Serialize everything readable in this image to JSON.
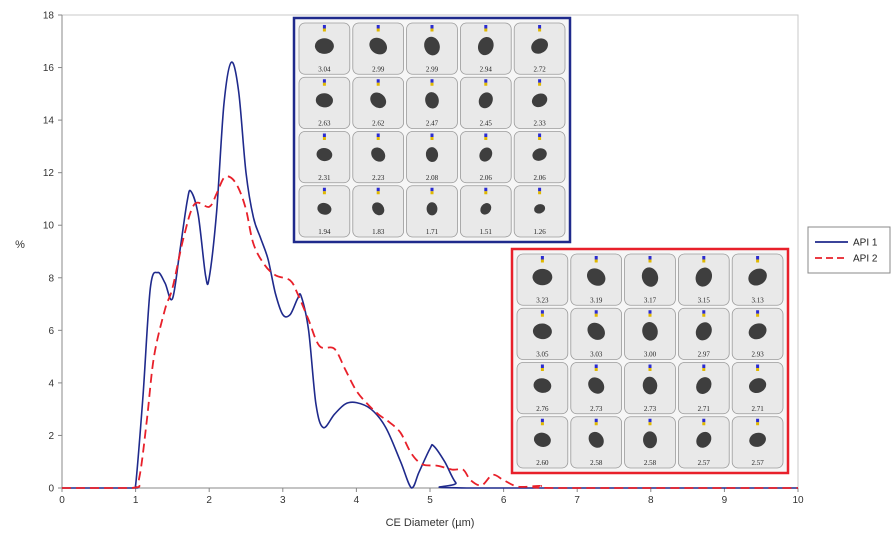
{
  "chart_data": {
    "type": "line",
    "xlabel": "CE Diameter (µm)",
    "ylabel": "%",
    "xlim": [
      0,
      10
    ],
    "ylim": [
      0,
      18
    ],
    "xticks": [
      0,
      1,
      2,
      3,
      4,
      5,
      6,
      7,
      8,
      9,
      10
    ],
    "yticks": [
      0,
      2,
      4,
      6,
      8,
      10,
      12,
      14,
      16,
      18
    ],
    "legend_position": "right",
    "series": [
      {
        "name": "API 1",
        "color": "#1f2a8c",
        "dash": "solid",
        "points": [
          [
            0,
            0
          ],
          [
            0.95,
            0
          ],
          [
            1.0,
            0.1
          ],
          [
            1.1,
            3.5
          ],
          [
            1.2,
            7.6
          ],
          [
            1.3,
            8.2
          ],
          [
            1.4,
            7.8
          ],
          [
            1.5,
            7.2
          ],
          [
            1.6,
            9.0
          ],
          [
            1.7,
            10.9
          ],
          [
            1.75,
            11.3
          ],
          [
            1.85,
            10.4
          ],
          [
            1.95,
            8.1
          ],
          [
            2.0,
            8.0
          ],
          [
            2.1,
            10.5
          ],
          [
            2.2,
            14.6
          ],
          [
            2.3,
            16.2
          ],
          [
            2.4,
            15.1
          ],
          [
            2.5,
            12.0
          ],
          [
            2.6,
            10.3
          ],
          [
            2.7,
            9.5
          ],
          [
            2.8,
            8.7
          ],
          [
            2.9,
            7.4
          ],
          [
            3.0,
            6.6
          ],
          [
            3.1,
            6.6
          ],
          [
            3.2,
            7.2
          ],
          [
            3.25,
            7.3
          ],
          [
            3.35,
            6.0
          ],
          [
            3.45,
            3.2
          ],
          [
            3.55,
            2.3
          ],
          [
            3.7,
            2.8
          ],
          [
            3.85,
            3.2
          ],
          [
            4.0,
            3.25
          ],
          [
            4.2,
            3.0
          ],
          [
            4.4,
            2.3
          ],
          [
            4.6,
            1.0
          ],
          [
            4.75,
            0.0
          ],
          [
            4.85,
            0.6
          ],
          [
            5.0,
            1.5
          ],
          [
            5.05,
            1.6
          ],
          [
            5.2,
            1.0
          ],
          [
            5.35,
            0.2
          ],
          [
            5.5,
            0.0
          ],
          [
            10,
            0
          ]
        ]
      },
      {
        "name": "API 2",
        "color": "#e8202a",
        "dash": "dashed",
        "points": [
          [
            0,
            0
          ],
          [
            0.95,
            0
          ],
          [
            1.05,
            0.4
          ],
          [
            1.15,
            2.5
          ],
          [
            1.25,
            5.0
          ],
          [
            1.4,
            6.8
          ],
          [
            1.5,
            7.6
          ],
          [
            1.65,
            9.5
          ],
          [
            1.8,
            10.8
          ],
          [
            2.0,
            10.7
          ],
          [
            2.1,
            11.2
          ],
          [
            2.2,
            11.8
          ],
          [
            2.3,
            11.8
          ],
          [
            2.4,
            11.4
          ],
          [
            2.5,
            10.6
          ],
          [
            2.6,
            9.3
          ],
          [
            2.75,
            8.5
          ],
          [
            2.9,
            8.1
          ],
          [
            3.1,
            7.9
          ],
          [
            3.2,
            7.4
          ],
          [
            3.35,
            6.4
          ],
          [
            3.5,
            5.4
          ],
          [
            3.7,
            5.3
          ],
          [
            3.85,
            4.5
          ],
          [
            4.0,
            3.7
          ],
          [
            4.15,
            3.2
          ],
          [
            4.3,
            2.8
          ],
          [
            4.45,
            2.5
          ],
          [
            4.6,
            2.1
          ],
          [
            4.75,
            1.3
          ],
          [
            4.9,
            0.9
          ],
          [
            5.1,
            0.85
          ],
          [
            5.3,
            0.7
          ],
          [
            5.45,
            0.7
          ],
          [
            5.55,
            0.3
          ],
          [
            5.7,
            0.1
          ],
          [
            5.85,
            0.5
          ],
          [
            6.0,
            0.3
          ],
          [
            6.2,
            0.05
          ],
          [
            6.5,
            0.08
          ],
          [
            6.7,
            0
          ],
          [
            10,
            0
          ]
        ]
      }
    ]
  },
  "particle_panels": {
    "upper": {
      "border_color": "#1f2a8c",
      "labels": [
        "3.04",
        "2.99",
        "2.99",
        "2.94",
        "2.72",
        "2.63",
        "2.62",
        "2.47",
        "2.45",
        "2.33",
        "2.31",
        "2.23",
        "2.08",
        "2.06",
        "2.06",
        "1.94",
        "1.83",
        "1.71",
        "1.51",
        "1.26"
      ]
    },
    "lower": {
      "border_color": "#e8202a",
      "labels": [
        "3.23",
        "3.19",
        "3.17",
        "3.15",
        "3.13",
        "3.05",
        "3.03",
        "3.00",
        "2.97",
        "2.93",
        "2.76",
        "2.73",
        "2.73",
        "2.71",
        "2.71",
        "2.60",
        "2.58",
        "2.58",
        "2.57",
        "2.57"
      ]
    }
  }
}
